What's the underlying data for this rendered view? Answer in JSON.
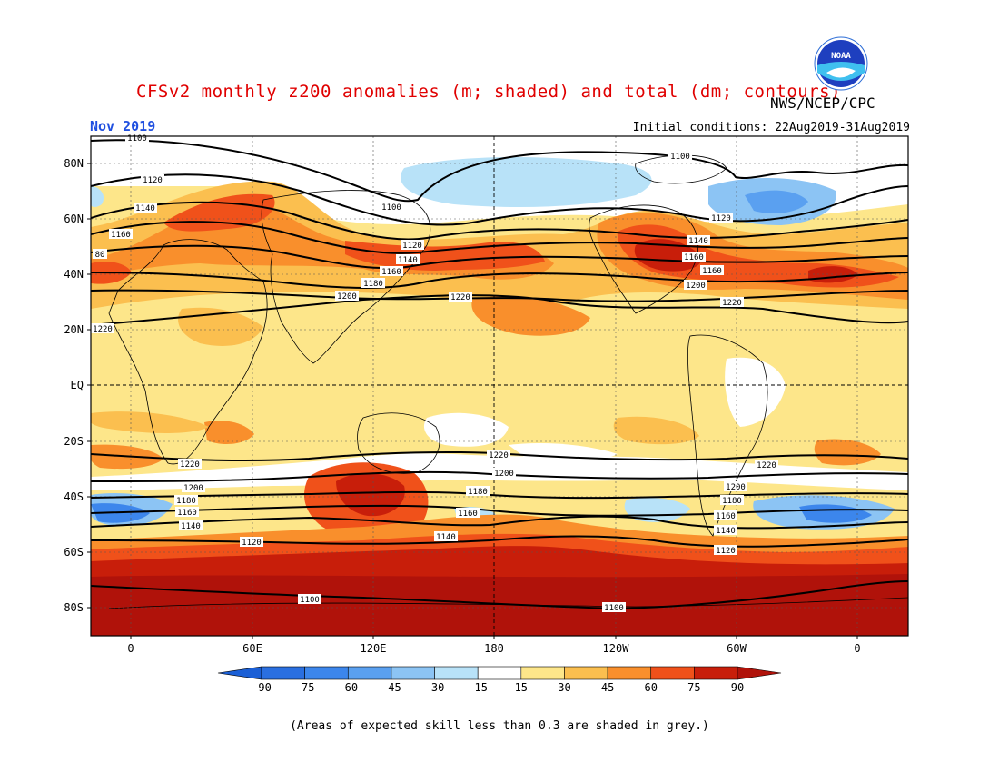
{
  "title": "CFSv2 monthly z200 anomalies (m; shaded) and total (dm; contours)",
  "agency": "NWS/NCEP/CPC",
  "logo_text": "NOAA",
  "month": "Nov 2019",
  "initial_conditions": "Initial conditions: 22Aug2019-31Aug2019",
  "footnote": "(Areas of expected skill less than 0.3 are shaded in grey.)",
  "lat_labels": [
    "80N",
    "60N",
    "40N",
    "20N",
    "EQ",
    "20S",
    "40S",
    "60S",
    "80S"
  ],
  "lon_labels": [
    "0",
    "60E",
    "120E",
    "180",
    "120W",
    "60W",
    "0"
  ],
  "colorbar": {
    "ticks": [
      "-90",
      "-75",
      "-60",
      "-45",
      "-30",
      "-15",
      "15",
      "30",
      "45",
      "60",
      "75",
      "90"
    ],
    "colors": [
      "#2a6fe0",
      "#3c86ec",
      "#5aa0f0",
      "#8cc4f4",
      "#b8e2f8",
      "#ffffff",
      "#fde68a",
      "#fbbf4f",
      "#f98f2c",
      "#f0511a",
      "#c81e0a"
    ],
    "low_end": "#1a5fd6",
    "high_end": "#b0120a"
  },
  "contour_labels": [
    "1100",
    "1120",
    "1140",
    "1160",
    "80",
    "1100",
    "1120",
    "1140",
    "1160",
    "1180",
    "1200",
    "1220",
    "1100",
    "1120",
    "1140",
    "1160",
    "1160",
    "1200",
    "1220",
    "1220",
    "1220",
    "1200",
    "1180",
    "1160",
    "1140",
    "1120",
    "1100",
    "1220",
    "1200",
    "1180",
    "1160",
    "1140",
    "1220",
    "1200",
    "1180",
    "1160",
    "1140",
    "1120",
    "1100"
  ]
}
